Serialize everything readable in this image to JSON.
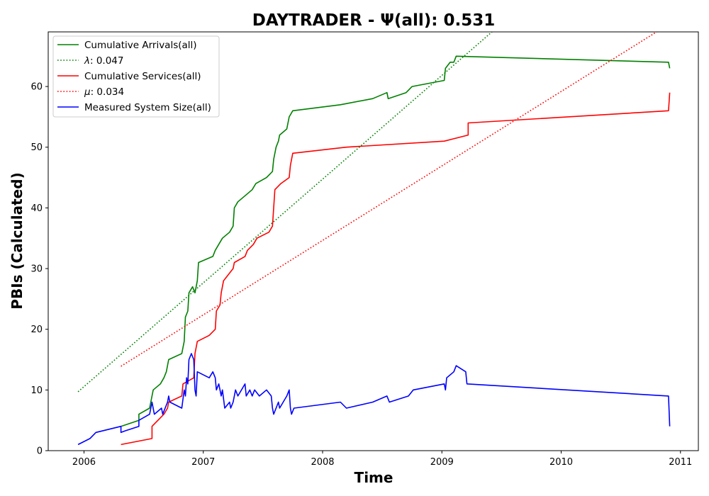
{
  "chart_data": {
    "type": "line",
    "title": "DAYTRADER -  Ψ(all): 0.531",
    "xlabel": "Time",
    "ylabel": "PBIs (Calculated)",
    "xlim": [
      2005.7,
      2011.15
    ],
    "ylim": [
      0,
      69
    ],
    "xticks": [
      2006,
      2007,
      2008,
      2009,
      2010,
      2011
    ],
    "xtick_labels": [
      "2006",
      "2007",
      "2008",
      "2009",
      "2010",
      "2011"
    ],
    "yticks": [
      0,
      10,
      20,
      30,
      40,
      50,
      60
    ],
    "ytick_labels": [
      "0",
      "10",
      "20",
      "30",
      "40",
      "50",
      "60"
    ],
    "grid": false,
    "legend_position": "upper-left",
    "series": [
      {
        "name": "Cumulative Arrivals(all)",
        "color": "#008000",
        "style": "solid",
        "points": [
          [
            2006.31,
            4
          ],
          [
            2006.46,
            5
          ],
          [
            2006.46,
            6
          ],
          [
            2006.55,
            7
          ],
          [
            2006.57,
            9
          ],
          [
            2006.58,
            10
          ],
          [
            2006.64,
            11
          ],
          [
            2006.67,
            12
          ],
          [
            2006.69,
            13
          ],
          [
            2006.71,
            15
          ],
          [
            2006.82,
            16
          ],
          [
            2006.84,
            18
          ],
          [
            2006.85,
            22
          ],
          [
            2006.87,
            23
          ],
          [
            2006.88,
            26
          ],
          [
            2006.91,
            27
          ],
          [
            2006.93,
            26
          ],
          [
            2006.95,
            28
          ],
          [
            2006.96,
            31
          ],
          [
            2007.08,
            32
          ],
          [
            2007.1,
            33
          ],
          [
            2007.13,
            34
          ],
          [
            2007.16,
            35
          ],
          [
            2007.22,
            36
          ],
          [
            2007.25,
            37
          ],
          [
            2007.26,
            40
          ],
          [
            2007.29,
            41
          ],
          [
            2007.35,
            42
          ],
          [
            2007.41,
            43
          ],
          [
            2007.44,
            44
          ],
          [
            2007.53,
            45
          ],
          [
            2007.58,
            46
          ],
          [
            2007.59,
            48
          ],
          [
            2007.61,
            50
          ],
          [
            2007.63,
            51
          ],
          [
            2007.64,
            52
          ],
          [
            2007.7,
            53
          ],
          [
            2007.72,
            55
          ],
          [
            2007.75,
            56
          ],
          [
            2008.15,
            57
          ],
          [
            2008.42,
            58
          ],
          [
            2008.54,
            59
          ],
          [
            2008.55,
            58
          ],
          [
            2008.7,
            59
          ],
          [
            2008.75,
            60
          ],
          [
            2009.02,
            61
          ],
          [
            2009.03,
            63
          ],
          [
            2009.07,
            64
          ],
          [
            2009.1,
            64
          ],
          [
            2009.12,
            65
          ],
          [
            2010.9,
            64
          ],
          [
            2010.91,
            63
          ]
        ]
      },
      {
        "name": "λ: 0.047",
        "color": "#008000",
        "style": "dotted",
        "points": [
          [
            2005.95,
            9.7
          ],
          [
            2009.42,
            69
          ]
        ]
      },
      {
        "name": "Cumulative Services(all)",
        "color": "#ff0000",
        "style": "solid",
        "points": [
          [
            2006.31,
            1
          ],
          [
            2006.57,
            2
          ],
          [
            2006.57,
            4
          ],
          [
            2006.67,
            6
          ],
          [
            2006.7,
            7
          ],
          [
            2006.71,
            8
          ],
          [
            2006.82,
            9
          ],
          [
            2006.83,
            11
          ],
          [
            2006.92,
            12
          ],
          [
            2006.93,
            16
          ],
          [
            2006.95,
            18
          ],
          [
            2007.05,
            19
          ],
          [
            2007.1,
            20
          ],
          [
            2007.11,
            23
          ],
          [
            2007.14,
            24
          ],
          [
            2007.15,
            26
          ],
          [
            2007.17,
            28
          ],
          [
            2007.25,
            30
          ],
          [
            2007.26,
            31
          ],
          [
            2007.35,
            32
          ],
          [
            2007.37,
            33
          ],
          [
            2007.42,
            34
          ],
          [
            2007.45,
            35
          ],
          [
            2007.55,
            36
          ],
          [
            2007.58,
            37
          ],
          [
            2007.59,
            40
          ],
          [
            2007.6,
            43
          ],
          [
            2007.65,
            44
          ],
          [
            2007.72,
            45
          ],
          [
            2007.73,
            47
          ],
          [
            2007.75,
            49
          ],
          [
            2008.2,
            50
          ],
          [
            2009.02,
            51
          ],
          [
            2009.22,
            52
          ],
          [
            2009.22,
            54
          ],
          [
            2010.9,
            56
          ],
          [
            2010.91,
            59
          ]
        ]
      },
      {
        "name": "μ: 0.034",
        "color": "#ff0000",
        "style": "dotted",
        "points": [
          [
            2006.31,
            13.9
          ],
          [
            2010.8,
            69
          ]
        ]
      },
      {
        "name": "Measured System Size(all)",
        "color": "#0000ff",
        "style": "solid",
        "points": [
          [
            2005.95,
            1
          ],
          [
            2006.05,
            2
          ],
          [
            2006.1,
            3
          ],
          [
            2006.31,
            4
          ],
          [
            2006.31,
            3
          ],
          [
            2006.35,
            3.3
          ],
          [
            2006.46,
            4
          ],
          [
            2006.46,
            5
          ],
          [
            2006.55,
            6
          ],
          [
            2006.57,
            8
          ],
          [
            2006.59,
            6
          ],
          [
            2006.65,
            7
          ],
          [
            2006.66,
            6
          ],
          [
            2006.7,
            8
          ],
          [
            2006.71,
            9
          ],
          [
            2006.72,
            8
          ],
          [
            2006.82,
            7
          ],
          [
            2006.84,
            10
          ],
          [
            2006.85,
            9
          ],
          [
            2006.86,
            12
          ],
          [
            2006.87,
            11
          ],
          [
            2006.88,
            15
          ],
          [
            2006.9,
            16
          ],
          [
            2006.92,
            15
          ],
          [
            2006.93,
            10
          ],
          [
            2006.94,
            9
          ],
          [
            2006.95,
            13
          ],
          [
            2007.05,
            12
          ],
          [
            2007.08,
            13
          ],
          [
            2007.1,
            12
          ],
          [
            2007.11,
            10
          ],
          [
            2007.13,
            11
          ],
          [
            2007.15,
            9
          ],
          [
            2007.16,
            10
          ],
          [
            2007.18,
            7
          ],
          [
            2007.22,
            8
          ],
          [
            2007.23,
            7
          ],
          [
            2007.25,
            8
          ],
          [
            2007.27,
            10
          ],
          [
            2007.29,
            9
          ],
          [
            2007.35,
            11
          ],
          [
            2007.36,
            9
          ],
          [
            2007.39,
            10
          ],
          [
            2007.41,
            9
          ],
          [
            2007.43,
            10
          ],
          [
            2007.47,
            9
          ],
          [
            2007.53,
            10
          ],
          [
            2007.57,
            9
          ],
          [
            2007.58,
            7
          ],
          [
            2007.59,
            6
          ],
          [
            2007.61,
            7
          ],
          [
            2007.63,
            8
          ],
          [
            2007.64,
            7
          ],
          [
            2007.7,
            9
          ],
          [
            2007.72,
            10
          ],
          [
            2007.73,
            7
          ],
          [
            2007.74,
            6
          ],
          [
            2007.76,
            7
          ],
          [
            2008.15,
            8
          ],
          [
            2008.2,
            7
          ],
          [
            2008.42,
            8
          ],
          [
            2008.54,
            9
          ],
          [
            2008.56,
            8
          ],
          [
            2008.72,
            9
          ],
          [
            2008.76,
            10
          ],
          [
            2009.02,
            11
          ],
          [
            2009.03,
            10
          ],
          [
            2009.04,
            12
          ],
          [
            2009.1,
            13
          ],
          [
            2009.12,
            14
          ],
          [
            2009.2,
            13
          ],
          [
            2009.21,
            11
          ],
          [
            2010.9,
            9
          ],
          [
            2010.91,
            4
          ]
        ]
      }
    ]
  }
}
